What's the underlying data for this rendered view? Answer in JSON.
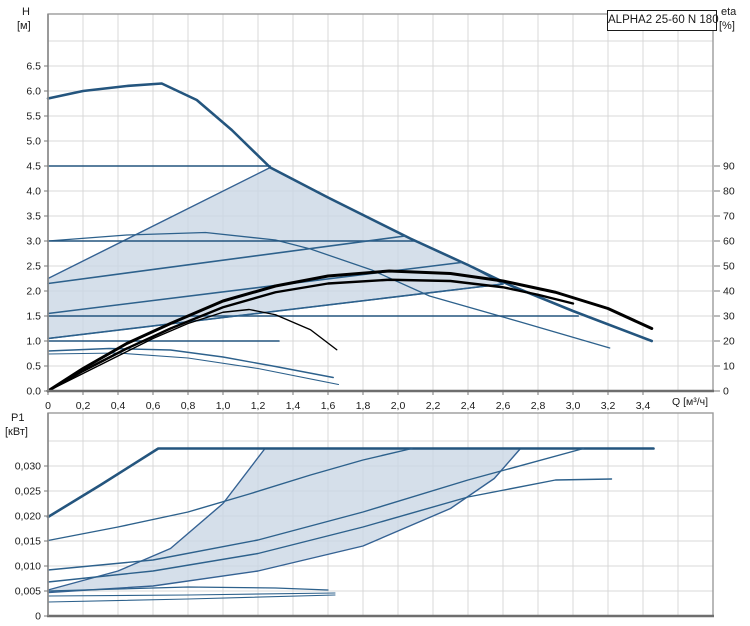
{
  "labels": {
    "h": "H",
    "h_unit": "[м]",
    "eta": "eta",
    "eta_unit": "[%]",
    "p1": "P1",
    "p1_unit": "[кВт]",
    "q": "Q [м³/ч]"
  },
  "title_box": {
    "label": "ALPHA2 25-60 N 180"
  },
  "colors": {
    "curve_blue": "#2d618c",
    "curve_blue_dark": "#24557e",
    "eta_black": "#000000",
    "shade_fill": "#c9d6e4",
    "shade_stroke": "#356293",
    "grid": "#d9d9d9",
    "frame": "#9b9b9b",
    "axis_dark": "#6e6e6e",
    "tick": "#777777",
    "text": "#1a1a1a",
    "background": "#ffffff"
  },
  "chart_data": [
    {
      "id": "head_chart",
      "type": "line",
      "title": "ALPHA2 25-60 N 180",
      "xlabel": "Q [м³/ч]",
      "x_range": [
        0,
        3.8
      ],
      "x_ticks": {
        "values": [
          0,
          0.2,
          0.4,
          0.6,
          0.8,
          1.0,
          1.2,
          1.4,
          1.6,
          1.8,
          2.0,
          2.2,
          2.4,
          2.6,
          2.8,
          3.0,
          3.2,
          3.4
        ],
        "labels": [
          "0",
          "0,2",
          "0,4",
          "0,6",
          "0,8",
          "1,0",
          "1,2",
          "1,4",
          "1,6",
          "1,8",
          "2,0",
          "2,2",
          "2,4",
          "2,6",
          "2,8",
          "3,0",
          "3,2",
          "3,4"
        ]
      },
      "y_left": {
        "label": "H [м]",
        "range": [
          0,
          7.5
        ],
        "tick_values": [
          0,
          0.5,
          1.0,
          1.5,
          2.0,
          2.5,
          3.0,
          3.5,
          4.0,
          4.5,
          5.0,
          5.5,
          6.0,
          6.5
        ],
        "tick_labels": [
          "0.0",
          "0.5",
          "1.0",
          "1.5",
          "2.0",
          "2.5",
          "3.0",
          "3.5",
          "4.0",
          "4.5",
          "5.0",
          "5.5",
          "6.0",
          "6.5"
        ]
      },
      "y_right": {
        "label": "eta [%]",
        "range": [
          0,
          150
        ],
        "tick_values": [
          0,
          10,
          20,
          30,
          40,
          50,
          60,
          70,
          80,
          90
        ],
        "tick_labels": [
          "0",
          "10",
          "20",
          "30",
          "40",
          "50",
          "60",
          "70",
          "80",
          "90"
        ]
      },
      "shaded_region": {
        "name": "autoadapt-operating-range",
        "axis": "H",
        "points": [
          [
            0,
            2.25
          ],
          [
            1.27,
            4.47
          ],
          [
            1.6,
            3.87
          ],
          [
            2.07,
            3.05
          ],
          [
            2.4,
            2.52
          ],
          [
            2.6,
            2.14
          ],
          [
            0,
            1.05
          ]
        ]
      },
      "curves": [
        {
          "name": "max-speed-curve",
          "axis": "H",
          "color": "curve_blue_dark",
          "w": 2.6,
          "points": [
            [
              0,
              5.85
            ],
            [
              0.2,
              6.0
            ],
            [
              0.45,
              6.1
            ],
            [
              0.65,
              6.15
            ],
            [
              0.85,
              5.82
            ],
            [
              1.05,
              5.22
            ],
            [
              1.27,
              4.47
            ],
            [
              1.6,
              3.87
            ],
            [
              2.07,
              3.05
            ],
            [
              2.4,
              2.52
            ],
            [
              2.65,
              2.1
            ],
            [
              3.0,
              1.6
            ],
            [
              3.45,
              1.0
            ]
          ]
        },
        {
          "name": "speed-ii-curve",
          "axis": "H",
          "color": "curve_blue",
          "w": 1.3,
          "points": [
            [
              0,
              3.0
            ],
            [
              0.45,
              3.12
            ],
            [
              0.9,
              3.17
            ],
            [
              1.3,
              3.02
            ],
            [
              1.5,
              2.84
            ],
            [
              1.85,
              2.42
            ],
            [
              2.18,
              1.9
            ],
            [
              2.7,
              1.38
            ],
            [
              3.21,
              0.86
            ]
          ]
        },
        {
          "name": "min-speed-curve-a",
          "axis": "H",
          "color": "curve_blue",
          "w": 1.4,
          "points": [
            [
              0,
              0.8
            ],
            [
              0.35,
              0.85
            ],
            [
              0.7,
              0.82
            ],
            [
              1.0,
              0.68
            ],
            [
              1.3,
              0.49
            ],
            [
              1.63,
              0.27
            ]
          ]
        },
        {
          "name": "min-speed-curve-b",
          "axis": "H",
          "color": "curve_blue",
          "w": 1.1,
          "points": [
            [
              0,
              0.74
            ],
            [
              0.4,
              0.76
            ],
            [
              0.8,
              0.66
            ],
            [
              1.2,
              0.45
            ],
            [
              1.66,
              0.13
            ]
          ]
        },
        {
          "name": "const-pressure-4_5",
          "axis": "H",
          "color": "curve_blue_dark",
          "w": 1.6,
          "points": [
            [
              0,
              4.5
            ],
            [
              1.27,
              4.5
            ]
          ]
        },
        {
          "name": "const-pressure-3_0",
          "axis": "H",
          "color": "curve_blue_dark",
          "w": 1.6,
          "points": [
            [
              0,
              3.0
            ],
            [
              2.1,
              3.0
            ]
          ]
        },
        {
          "name": "const-pressure-1_5",
          "axis": "H",
          "color": "curve_blue_dark",
          "w": 1.6,
          "points": [
            [
              0,
              1.5
            ],
            [
              3.03,
              1.5
            ]
          ]
        },
        {
          "name": "const-pressure-1_0",
          "axis": "H",
          "color": "curve_blue_dark",
          "w": 1.6,
          "points": [
            [
              0,
              1.0
            ],
            [
              1.32,
              1.0
            ]
          ]
        },
        {
          "name": "prop-pressure-1",
          "axis": "H",
          "color": "curve_blue",
          "w": 1.6,
          "points": [
            [
              0,
              1.05
            ],
            [
              2.6,
              2.14
            ]
          ]
        },
        {
          "name": "prop-pressure-2",
          "axis": "H",
          "color": "curve_blue",
          "w": 1.6,
          "points": [
            [
              0,
              1.55
            ],
            [
              2.36,
              2.57
            ]
          ]
        },
        {
          "name": "prop-pressure-3",
          "axis": "H",
          "color": "curve_blue",
          "w": 1.6,
          "points": [
            [
              0,
              2.15
            ],
            [
              2.04,
              3.1
            ]
          ]
        },
        {
          "name": "eta-curve-max",
          "axis": "eta",
          "color": "eta_black",
          "w": 3,
          "points": [
            [
              0,
              0
            ],
            [
              0.2,
              9
            ],
            [
              0.45,
              19
            ],
            [
              0.7,
              27
            ],
            [
              1.0,
              36
            ],
            [
              1.3,
              42
            ],
            [
              1.6,
              46
            ],
            [
              1.95,
              48
            ],
            [
              2.3,
              47
            ],
            [
              2.6,
              44
            ],
            [
              2.9,
              39.5
            ],
            [
              3.2,
              33
            ],
            [
              3.45,
              25
            ]
          ]
        },
        {
          "name": "eta-curve-2",
          "axis": "eta",
          "color": "eta_black",
          "w": 2.4,
          "points": [
            [
              0,
              0
            ],
            [
              0.2,
              8
            ],
            [
              0.45,
              17
            ],
            [
              0.7,
              25
            ],
            [
              1.0,
              33.5
            ],
            [
              1.3,
              39.5
            ],
            [
              1.6,
              43
            ],
            [
              1.95,
              44.5
            ],
            [
              2.3,
              44
            ],
            [
              2.6,
              41.5
            ],
            [
              2.8,
              38.5
            ],
            [
              3.0,
              35
            ]
          ]
        },
        {
          "name": "eta-curve-min",
          "axis": "eta",
          "color": "eta_black",
          "w": 1.4,
          "points": [
            [
              0,
              0
            ],
            [
              0.2,
              7
            ],
            [
              0.4,
              14
            ],
            [
              0.6,
              21
            ],
            [
              0.8,
              27
            ],
            [
              1.0,
              31.5
            ],
            [
              1.15,
              32.6
            ],
            [
              1.3,
              30.5
            ],
            [
              1.5,
              24.5
            ],
            [
              1.65,
              16.5
            ]
          ]
        }
      ]
    },
    {
      "id": "power_chart",
      "type": "line",
      "title": "",
      "xlabel": "Q [м³/ч]",
      "x_range": [
        0,
        3.8
      ],
      "x_ticks": {
        "values": [],
        "labels": []
      },
      "y_left": {
        "label": "P1 [кВт]",
        "range": [
          0,
          0.04
        ],
        "tick_values": [
          0,
          0.005,
          0.01,
          0.015,
          0.02,
          0.025,
          0.03
        ],
        "tick_labels": [
          "0",
          "0,005",
          "0,010",
          "0,015",
          "0,020",
          "0,025",
          "0,030"
        ]
      },
      "shaded_region": {
        "name": "autoadapt-power-range",
        "axis": "P",
        "points": [
          [
            0,
            0.0052
          ],
          [
            0.4,
            0.009
          ],
          [
            0.7,
            0.0135
          ],
          [
            1.0,
            0.0225
          ],
          [
            1.24,
            0.0335
          ],
          [
            2.7,
            0.0335
          ],
          [
            2.55,
            0.0275
          ],
          [
            2.3,
            0.0215
          ],
          [
            1.8,
            0.014
          ],
          [
            1.2,
            0.009
          ],
          [
            0.6,
            0.006
          ],
          [
            0,
            0.0047
          ]
        ]
      },
      "curves": [
        {
          "name": "p1-max-speed",
          "axis": "P",
          "color": "curve_blue_dark",
          "w": 2.6,
          "points": [
            [
              0,
              0.0198
            ],
            [
              0.3,
              0.0262
            ],
            [
              0.63,
              0.0335
            ],
            [
              3.46,
              0.0335
            ]
          ]
        },
        {
          "name": "p1-const-pressure-4_5",
          "axis": "P",
          "color": "curve_blue",
          "w": 1.4,
          "points": [
            [
              0,
              0.0151
            ],
            [
              0.4,
              0.0178
            ],
            [
              0.8,
              0.0208
            ],
            [
              1.15,
              0.0244
            ],
            [
              1.5,
              0.0282
            ],
            [
              1.8,
              0.0312
            ],
            [
              2.08,
              0.0335
            ]
          ]
        },
        {
          "name": "p1-const-pressure-3_0",
          "axis": "P",
          "color": "curve_blue",
          "w": 1.4,
          "points": [
            [
              0,
              0.0092
            ],
            [
              0.6,
              0.0112
            ],
            [
              1.2,
              0.0152
            ],
            [
              1.8,
              0.0208
            ],
            [
              2.4,
              0.0272
            ],
            [
              3.06,
              0.0335
            ]
          ]
        },
        {
          "name": "p1-speed-ii",
          "axis": "P",
          "color": "curve_blue",
          "w": 1.4,
          "points": [
            [
              0,
              0.0068
            ],
            [
              0.6,
              0.009
            ],
            [
              1.2,
              0.0125
            ],
            [
              1.8,
              0.0178
            ],
            [
              2.4,
              0.0238
            ],
            [
              2.9,
              0.0272
            ],
            [
              3.22,
              0.0274
            ]
          ]
        },
        {
          "name": "p1-min-a",
          "axis": "P",
          "color": "curve_blue",
          "w": 1.3,
          "points": [
            [
              0,
              0.005
            ],
            [
              0.8,
              0.0058
            ],
            [
              1.3,
              0.0056
            ],
            [
              1.6,
              0.0052
            ]
          ]
        },
        {
          "name": "p1-min-b",
          "axis": "P",
          "color": "curve_blue",
          "w": 1.1,
          "points": [
            [
              0,
              0.004
            ],
            [
              0.8,
              0.0042
            ],
            [
              1.64,
              0.0046
            ]
          ]
        },
        {
          "name": "p1-min-c",
          "axis": "P",
          "color": "curve_blue",
          "w": 1.1,
          "points": [
            [
              0,
              0.0028
            ],
            [
              0.8,
              0.0034
            ],
            [
              1.64,
              0.0042
            ]
          ]
        }
      ]
    }
  ]
}
